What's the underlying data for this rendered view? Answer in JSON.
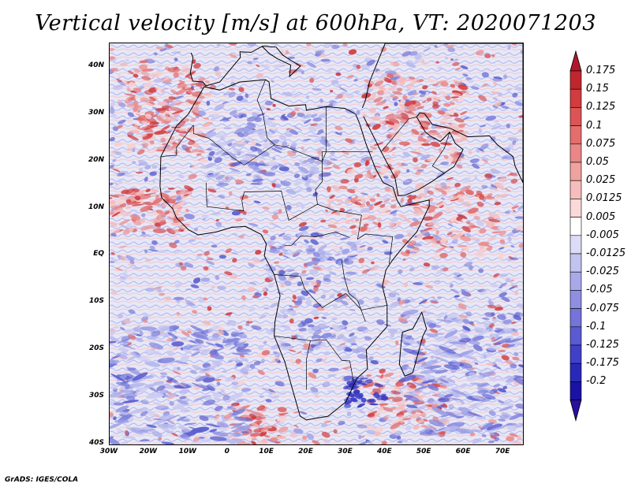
{
  "title": "Vertical velocity [m/s] at 600hPa, VT: 2020071203",
  "map": {
    "projection": "lat-lon",
    "lon_range": [
      -30,
      75
    ],
    "lat_range": [
      -40,
      45
    ],
    "y_ticks": [
      {
        "lat": 40,
        "label": "40N"
      },
      {
        "lat": 30,
        "label": "30N"
      },
      {
        "lat": 20,
        "label": "20N"
      },
      {
        "lat": 10,
        "label": "10N"
      },
      {
        "lat": 0,
        "label": "EQ"
      },
      {
        "lat": -10,
        "label": "10S"
      },
      {
        "lat": -20,
        "label": "20S"
      },
      {
        "lat": -30,
        "label": "30S"
      },
      {
        "lat": -40,
        "label": "40S"
      }
    ],
    "x_ticks": [
      {
        "lon": -30,
        "label": "30W"
      },
      {
        "lon": -20,
        "label": "20W"
      },
      {
        "lon": -10,
        "label": "10W"
      },
      {
        "lon": 0,
        "label": "0"
      },
      {
        "lon": 10,
        "label": "10E"
      },
      {
        "lon": 20,
        "label": "20E"
      },
      {
        "lon": 30,
        "label": "30E"
      },
      {
        "lon": 40,
        "label": "40E"
      },
      {
        "lon": 50,
        "label": "50E"
      },
      {
        "lon": 60,
        "label": "60E"
      },
      {
        "lon": 70,
        "label": "70E"
      }
    ],
    "colors": {
      "background": "#eef0fa",
      "land_outline": "#000000",
      "ascent_band": "#3b3bd6",
      "subsidence_band": "#d93b3b"
    }
  },
  "colorbar": {
    "max_arrow_color": "#b2182b",
    "min_arrow_color": "#2a0fa0",
    "levels": [
      {
        "label": "0.175",
        "color": "#c0262d"
      },
      {
        "label": "0.15",
        "color": "#d13c3f"
      },
      {
        "label": "0.125",
        "color": "#dc5556"
      },
      {
        "label": "0.1",
        "color": "#e46e6d"
      },
      {
        "label": "0.075",
        "color": "#ea8786"
      },
      {
        "label": "0.05",
        "color": "#f0a2a0"
      },
      {
        "label": "0.025",
        "color": "#f5bebd"
      },
      {
        "label": "0.0125",
        "color": "#fad9d8"
      },
      {
        "label": "0.005",
        "color": "#ffffff"
      },
      {
        "label": "-0.005",
        "color": "#dcdcf6"
      },
      {
        "label": "-0.0125",
        "color": "#c3c3f0"
      },
      {
        "label": "-0.025",
        "color": "#a9a9ea"
      },
      {
        "label": "-0.05",
        "color": "#8f8fe2"
      },
      {
        "label": "-0.075",
        "color": "#7474da"
      },
      {
        "label": "-0.1",
        "color": "#5a5ad2"
      },
      {
        "label": "-0.125",
        "color": "#4040c8"
      },
      {
        "label": "-0.175",
        "color": "#2929b8"
      },
      {
        "label": "-0.2",
        "color": "#1a12a2"
      }
    ]
  },
  "footer": "GrADS: IGES/COLA"
}
